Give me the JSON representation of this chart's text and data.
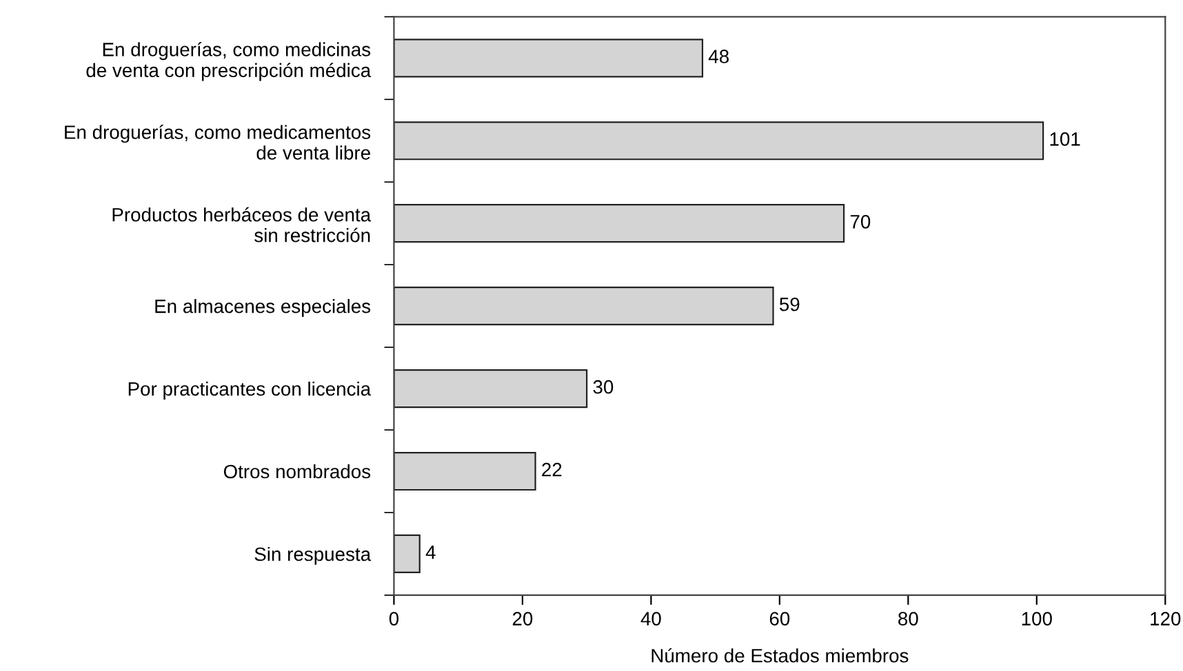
{
  "chart_data": {
    "type": "bar",
    "orientation": "horizontal",
    "categories": [
      "En droguerías, como medicinas\nde venta con prescripción médica",
      "En droguerías, como medicamentos\nde venta libre",
      "Productos herbáceos de venta\nsin restricción",
      "En almacenes especiales",
      "Por practicantes con licencia",
      "Otros nombrados",
      "Sin respuesta"
    ],
    "values": [
      48,
      101,
      70,
      59,
      30,
      22,
      4
    ],
    "color": "#d4d4d4",
    "xlabel": "Número de Estados miembros",
    "xlim": [
      0,
      120
    ],
    "xticks": [
      0,
      20,
      40,
      60,
      80,
      100,
      120
    ],
    "data_labels": true,
    "grid": false,
    "legend": false
  }
}
